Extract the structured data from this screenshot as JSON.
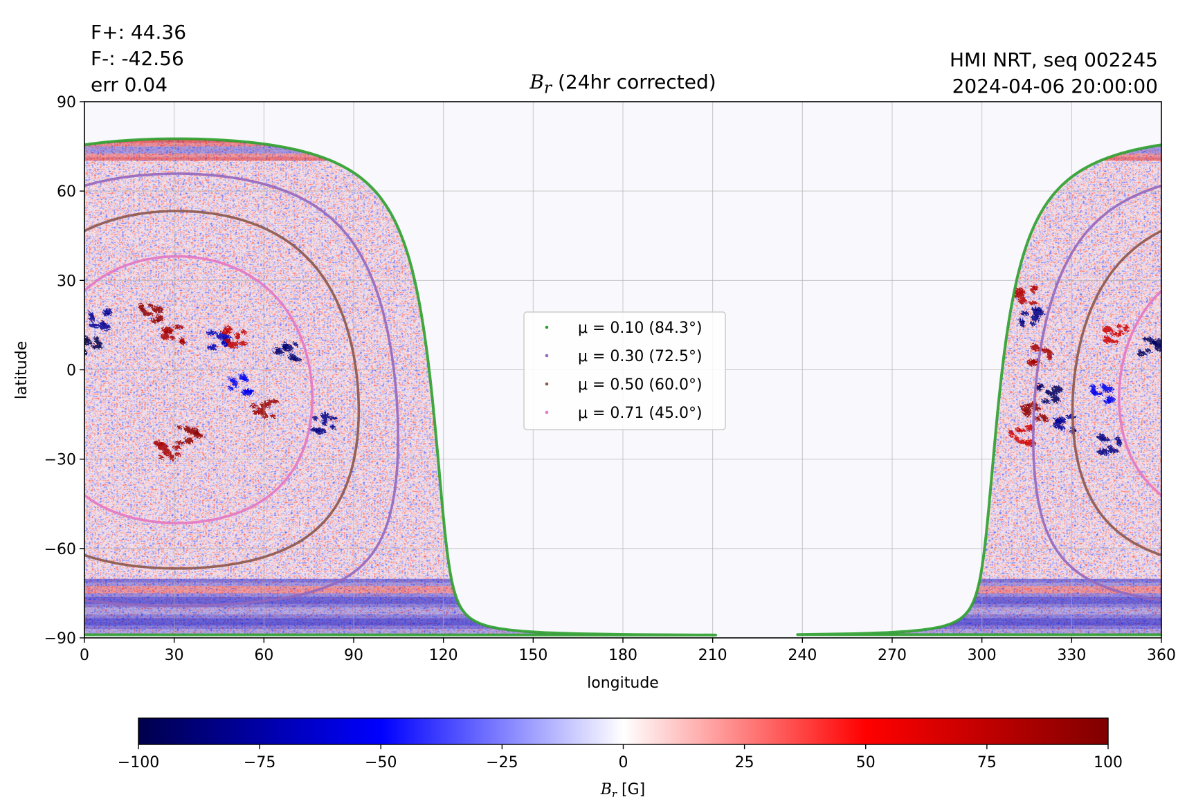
{
  "header": {
    "flux_pos": "F+: 44.36",
    "flux_neg": "F-: -42.56",
    "err": "err 0.04",
    "source": "HMI NRT, seq 002245",
    "timestamp": "2024-04-06 20:00:00"
  },
  "chart_data": {
    "type": "heatmap",
    "title_symbol": "B",
    "title_subscript": "r",
    "title_rest": " (24hr corrected)",
    "xlabel": "longitude",
    "ylabel": "latitude",
    "xlim": [
      0,
      360
    ],
    "ylim": [
      -90,
      90
    ],
    "xticks": [
      0,
      30,
      60,
      90,
      120,
      150,
      180,
      210,
      240,
      270,
      300,
      330,
      360
    ],
    "yticks": [
      {
        "value": 90,
        "label": "90"
      },
      {
        "value": 60,
        "label": "60"
      },
      {
        "value": 30,
        "label": "30"
      },
      {
        "value": 0,
        "label": "0"
      },
      {
        "value": -30,
        "label": "−30"
      },
      {
        "value": -60,
        "label": "−60"
      },
      {
        "value": -90,
        "label": "−90"
      }
    ],
    "grid": true,
    "disk_center": {
      "lon": 31,
      "lat": -6.7
    },
    "contours": [
      {
        "mu_label": "μ = 0.10 (84.3°)",
        "mu": 0.1,
        "angle_deg": 84.3,
        "color": "#2ca02c"
      },
      {
        "mu_label": "μ = 0.30 (72.5°)",
        "mu": 0.3,
        "angle_deg": 72.5,
        "color": "#9467bd"
      },
      {
        "mu_label": "μ = 0.50 (60.0°)",
        "mu": 0.5,
        "angle_deg": 60.0,
        "color": "#8c564b"
      },
      {
        "mu_label": "μ = 0.71 (45.0°)",
        "mu": 0.71,
        "angle_deg": 45.0,
        "color": "#e377c2"
      }
    ],
    "legend_position": "center",
    "colorbar": {
      "min": -100,
      "max": 100,
      "ticks": [
        {
          "value": -100,
          "label": "−100"
        },
        {
          "value": -75,
          "label": "−75"
        },
        {
          "value": -50,
          "label": "−50"
        },
        {
          "value": -25,
          "label": "−25"
        },
        {
          "value": 0,
          "label": "0"
        },
        {
          "value": 25,
          "label": "25"
        },
        {
          "value": 50,
          "label": "50"
        },
        {
          "value": 75,
          "label": "75"
        },
        {
          "value": 100,
          "label": "100"
        }
      ],
      "label_symbol": "B",
      "label_subscript": "r",
      "label_unit": " [G]",
      "colormap": "seismic",
      "colors": [
        "#00004c",
        "#0000ff",
        "#ffffff",
        "#ff0000",
        "#800000"
      ]
    },
    "active_regions": [
      {
        "lon": 22,
        "lat": 19,
        "value": 95
      },
      {
        "lon": 30,
        "lat": 12,
        "value": 85
      },
      {
        "lon": 5,
        "lat": 17,
        "value": -80
      },
      {
        "lon": 2,
        "lat": 8,
        "value": -100
      },
      {
        "lon": 45,
        "lat": 10,
        "value": -70
      },
      {
        "lon": 50,
        "lat": 11,
        "value": 75
      },
      {
        "lon": 68,
        "lat": 6,
        "value": -90
      },
      {
        "lon": 60,
        "lat": -13,
        "value": 90
      },
      {
        "lon": 80,
        "lat": -18,
        "value": -85
      },
      {
        "lon": 35,
        "lat": -22,
        "value": 95
      },
      {
        "lon": 28,
        "lat": -27,
        "value": 85
      },
      {
        "lon": 52,
        "lat": -5,
        "value": -55
      },
      {
        "lon": 315,
        "lat": 25,
        "value": 80
      },
      {
        "lon": 316,
        "lat": 18,
        "value": -85
      },
      {
        "lon": 320,
        "lat": 5,
        "value": 85
      },
      {
        "lon": 322,
        "lat": -8,
        "value": -95
      },
      {
        "lon": 318,
        "lat": -14,
        "value": 95
      },
      {
        "lon": 313,
        "lat": -22,
        "value": 70
      },
      {
        "lon": 345,
        "lat": 12,
        "value": 70
      },
      {
        "lon": 356,
        "lat": 8,
        "value": -95
      },
      {
        "lon": 343,
        "lat": -25,
        "value": -85
      },
      {
        "lon": 340,
        "lat": -8,
        "value": -55
      },
      {
        "lon": 328,
        "lat": -18,
        "value": -80
      }
    ]
  }
}
